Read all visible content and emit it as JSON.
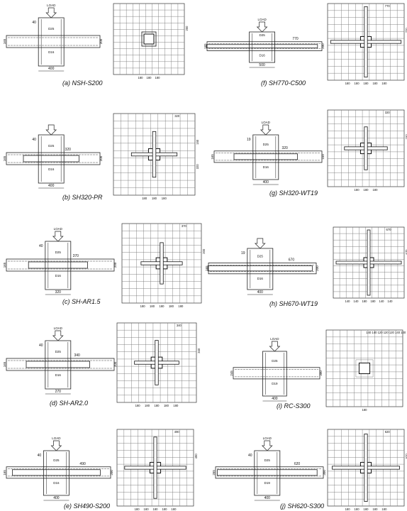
{
  "figure": {
    "panels": [
      {
        "id": "a",
        "caption": "(a) NSH-S200",
        "load": "LOAD",
        "rebar_top": "D25",
        "rebar_bottom": "D16",
        "dim_top": "40",
        "dim_arm": "",
        "dim_left": "165",
        "dim_right": "200",
        "dim_width": "400",
        "plan_dims": [
          "180",
          "180",
          "180"
        ],
        "plan_top_dim": "",
        "plan_side_dims": [
          "200"
        ],
        "arm_ratio": 0
      },
      {
        "id": "b",
        "caption": "(b) SH320-PR",
        "load": "",
        "rebar_top": "D25",
        "rebar_bottom": "D16",
        "dim_top": "40",
        "dim_arm": "320",
        "dim_left": "165",
        "dim_right": "200",
        "dim_width": "400",
        "plan_dims": [
          "180",
          "180",
          "180"
        ],
        "plan_top_dim": "320",
        "plan_side_dims": [
          "150",
          "320"
        ],
        "arm_ratio": 0.28
      },
      {
        "id": "c",
        "caption": "(c) SH-AR1.5",
        "load": "LOAD",
        "rebar_top": "D25",
        "rebar_bottom": "D16",
        "dim_top": "40",
        "dim_arm": "370",
        "dim_left": "165",
        "dim_right": "200",
        "dim_width": "320",
        "plan_dims": [
          "180",
          "180",
          "180",
          "180",
          "180"
        ],
        "plan_top_dim": "370",
        "plan_side_dims": [
          "200"
        ],
        "arm_ratio": 0.26
      },
      {
        "id": "d",
        "caption": "(d) SH-AR2.0",
        "load": "LOAD",
        "rebar_top": "D25",
        "rebar_bottom": "D16",
        "dim_top": "40",
        "dim_arm": "340",
        "dim_left": "165",
        "dim_right": "200",
        "dim_width": "270",
        "plan_dims": [
          "180",
          "180",
          "180",
          "180",
          "180"
        ],
        "plan_top_dim": "340",
        "plan_side_dims": [
          "340"
        ],
        "arm_ratio": 0.28
      },
      {
        "id": "e",
        "caption": "(e) SH490-S200",
        "load": "LOAD",
        "rebar_top": "D25",
        "rebar_bottom": "D16",
        "dim_top": "40",
        "dim_arm": "490",
        "dim_left": "165",
        "dim_right": "200",
        "dim_width": "400",
        "plan_dims": [
          "180",
          "180",
          "180",
          "180",
          "180"
        ],
        "plan_top_dim": "490",
        "plan_side_dims": [
          "490"
        ],
        "arm_ratio": 0.4
      },
      {
        "id": "f",
        "caption": "(f) SH770-C500",
        "load": "LOAD",
        "rebar_top": "D25",
        "rebar_bottom": "D16",
        "dim_top": "",
        "dim_arm": "770",
        "dim_left": "165",
        "dim_right": "200",
        "dim_width": "500",
        "plan_dims": [
          "180",
          "180",
          "180",
          "180",
          "180"
        ],
        "plan_top_dim": "770",
        "plan_side_dims": [
          "770"
        ],
        "arm_ratio": 0.46
      },
      {
        "id": "g",
        "caption": "(g) SH320-WT19",
        "load": "LOAD",
        "rebar_top": "D25",
        "rebar_bottom": "D16",
        "dim_top": "19",
        "dim_arm": "320",
        "dim_left": "165",
        "dim_right": "150",
        "dim_width": "400",
        "plan_dims": [
          "180",
          "180",
          "180"
        ],
        "plan_top_dim": "320",
        "plan_side_dims": [
          "150"
        ],
        "arm_ratio": 0.28
      },
      {
        "id": "h",
        "caption": "(h) SH670-WT19",
        "load": "",
        "rebar_top": "D25",
        "rebar_bottom": "D16",
        "dim_top": "19",
        "dim_arm": "670",
        "dim_left": "165",
        "dim_right": "200",
        "dim_width": "400",
        "plan_dims": [
          "140",
          "140",
          "180",
          "180",
          "140",
          "140"
        ],
        "plan_top_dim": "670",
        "plan_side_dims": [
          "670"
        ],
        "arm_ratio": 0.46
      },
      {
        "id": "i",
        "caption": "(i) RC-S300",
        "load": "LOAD",
        "rebar_top": "D25",
        "rebar_bottom": "D19",
        "dim_top": "",
        "dim_arm": "",
        "dim_left": "245",
        "dim_right": "300",
        "dim_width": "400",
        "plan_dims": [
          "180"
        ],
        "plan_top_dim": "140 140 120 120 120 140 140",
        "plan_side_dims": [],
        "arm_ratio": 0
      },
      {
        "id": "j",
        "caption": "(j) SH620-S300",
        "load": "LOAD",
        "rebar_top": "D25",
        "rebar_bottom": "D19",
        "dim_top": "40",
        "dim_arm": "620",
        "dim_left": "265",
        "dim_right": "300",
        "dim_width": "400",
        "plan_dims": [
          "180",
          "180",
          "180",
          "180",
          "180"
        ],
        "plan_top_dim": "620",
        "plan_side_dims": [
          "620"
        ],
        "arm_ratio": 0.44
      }
    ]
  }
}
